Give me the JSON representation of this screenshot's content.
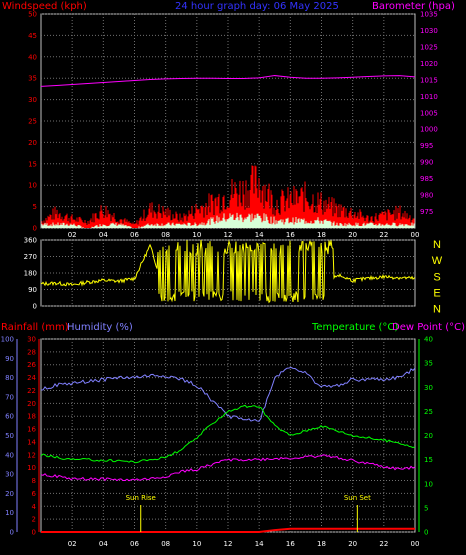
{
  "colors": {
    "windspeed": "#ff0000",
    "gust": "#ff0000",
    "wind_avg": "#d8ffd8",
    "barometer": "#ff00ff",
    "title": "#3333ff",
    "direction": "#ffff00",
    "rainfall": "#ff0000",
    "humidity": "#8080ff",
    "temperature": "#00ff00",
    "dewpoint": "#ff00ff",
    "sun": "#ffff00",
    "frame": "#c0c0c0",
    "grid": "#707070"
  },
  "chart_data": [
    {
      "type": "line",
      "id": "wind_baro",
      "title": "24 hour graph day: 06 May 2025",
      "ylabel_left": "Windspeed (kph)",
      "ylabel_right": "Barometer (hpa)",
      "ylim_left": [
        0,
        50
      ],
      "ylim_right": [
        970,
        1035
      ],
      "yticks_left": [
        "0",
        "5",
        "10",
        "15",
        "20",
        "25",
        "30",
        "35",
        "40",
        "45",
        "50"
      ],
      "yticks_right": [
        "975",
        "980",
        "985",
        "990",
        "995",
        "1000",
        "1005",
        "1010",
        "1015",
        "1020",
        "1025",
        "1030",
        "1035"
      ],
      "x": [
        0,
        1,
        2,
        3,
        4,
        5,
        6,
        7,
        8,
        9,
        10,
        11,
        12,
        13,
        14,
        15,
        16,
        17,
        18,
        19,
        20,
        21,
        22,
        23,
        24
      ],
      "series": [
        {
          "key": "barometer",
          "axis": "right",
          "values": [
            1013,
            1013.3,
            1013.6,
            1013.9,
            1014.2,
            1014.5,
            1014.8,
            1015.1,
            1015.3,
            1015.4,
            1015.5,
            1015.5,
            1015.4,
            1015.4,
            1015.6,
            1016.3,
            1015.8,
            1015.5,
            1015.5,
            1015.6,
            1015.8,
            1016,
            1016.2,
            1016.3,
            1015.9
          ]
        },
        {
          "key": "windspeed",
          "axis": "left",
          "values": [
            2,
            5,
            3,
            2,
            6,
            3,
            1,
            6,
            5,
            3,
            6,
            8,
            11,
            12,
            15,
            8,
            9,
            10,
            8,
            6,
            5,
            3,
            4,
            5,
            3
          ]
        },
        {
          "key": "wind_avg",
          "axis": "left",
          "values": [
            1,
            1,
            1,
            0,
            1,
            1,
            0,
            1,
            1,
            1,
            1,
            2,
            3,
            3,
            3,
            2,
            2,
            2,
            2,
            1,
            1,
            1,
            1,
            1,
            1
          ]
        }
      ]
    },
    {
      "type": "line",
      "id": "direction",
      "ylim": [
        0,
        360
      ],
      "yticks": [
        "0",
        "90",
        "180",
        "270",
        "360"
      ],
      "compass": [
        "N",
        "W",
        "S",
        "E",
        "N"
      ],
      "x": [
        0,
        1,
        2,
        3,
        4,
        5,
        6,
        7,
        8,
        9,
        10,
        11,
        12,
        13,
        14,
        15,
        16,
        17,
        18,
        19,
        20,
        21,
        22,
        23,
        24
      ],
      "series": [
        {
          "key": "direction",
          "values": [
            120,
            125,
            115,
            130,
            140,
            135,
            150,
            330,
            60,
            320,
            40,
            300,
            60,
            350,
            30,
            310,
            40,
            330,
            50,
            170,
            140,
            150,
            160,
            155,
            150
          ]
        }
      ]
    },
    {
      "type": "line",
      "id": "temp_hum_rain",
      "ylabel_rain": "Rainfall (mm)",
      "ylabel_humidity": "Humidity (%)",
      "ylabel_temp": "Temperature (°C)",
      "ylabel_dew": "Dew Point (°C)",
      "yticks_humidity": [
        "0",
        "10",
        "20",
        "30",
        "40",
        "50",
        "60",
        "70",
        "80",
        "90",
        "100"
      ],
      "yticks_rain": [
        "0",
        "2",
        "4",
        "6",
        "8",
        "10",
        "12",
        "14",
        "16",
        "18",
        "20",
        "22",
        "24",
        "26",
        "28",
        "30"
      ],
      "yticks_temp": [
        "0",
        "5",
        "10",
        "15",
        "20",
        "25",
        "30",
        "35",
        "40"
      ],
      "ylim_humidity": [
        0,
        100
      ],
      "ylim_temp": [
        0,
        40
      ],
      "ylim_rain": [
        0,
        30
      ],
      "x": [
        0,
        1,
        2,
        3,
        4,
        5,
        6,
        7,
        8,
        9,
        10,
        11,
        12,
        13,
        14,
        15,
        16,
        17,
        18,
        19,
        20,
        21,
        22,
        23,
        24
      ],
      "series": [
        {
          "key": "humidity",
          "axis": "humidity",
          "values": [
            74,
            76,
            77,
            78,
            79,
            80,
            80,
            81,
            81,
            79,
            76,
            68,
            60,
            59,
            57,
            80,
            86,
            82,
            75,
            76,
            79,
            79,
            79,
            80,
            85
          ]
        },
        {
          "key": "temperature",
          "axis": "temp",
          "values": [
            16,
            15.5,
            15,
            15,
            14.8,
            14.8,
            14.5,
            15,
            15.5,
            17,
            19.5,
            22.5,
            25,
            26,
            26,
            22,
            20,
            21,
            22,
            21,
            20,
            19.5,
            19,
            18.5,
            17.5
          ]
        },
        {
          "key": "dewpoint",
          "axis": "temp",
          "values": [
            12,
            11.5,
            11,
            11,
            11,
            10.8,
            10.8,
            11,
            11.5,
            12.5,
            13,
            14,
            15,
            15,
            15,
            15.2,
            15.3,
            15.5,
            15.8,
            15.5,
            14.8,
            14.2,
            13.5,
            13,
            13.5
          ]
        },
        {
          "key": "rainfall",
          "axis": "rain",
          "values": [
            0,
            0,
            0,
            0,
            0,
            0,
            0,
            0,
            0,
            0,
            0,
            0,
            0,
            0,
            0,
            0.3,
            0.5,
            0.5,
            0.5,
            0.5,
            0.5,
            0.5,
            0.5,
            0.5,
            0.5
          ]
        }
      ],
      "markers": [
        {
          "label": "Sun Rise",
          "x": 6.4
        },
        {
          "label": "Sun Set",
          "x": 20.3
        }
      ]
    }
  ],
  "xticks": [
    "02",
    "04",
    "06",
    "08",
    "10",
    "12",
    "14",
    "16",
    "18",
    "20",
    "22",
    "00"
  ]
}
